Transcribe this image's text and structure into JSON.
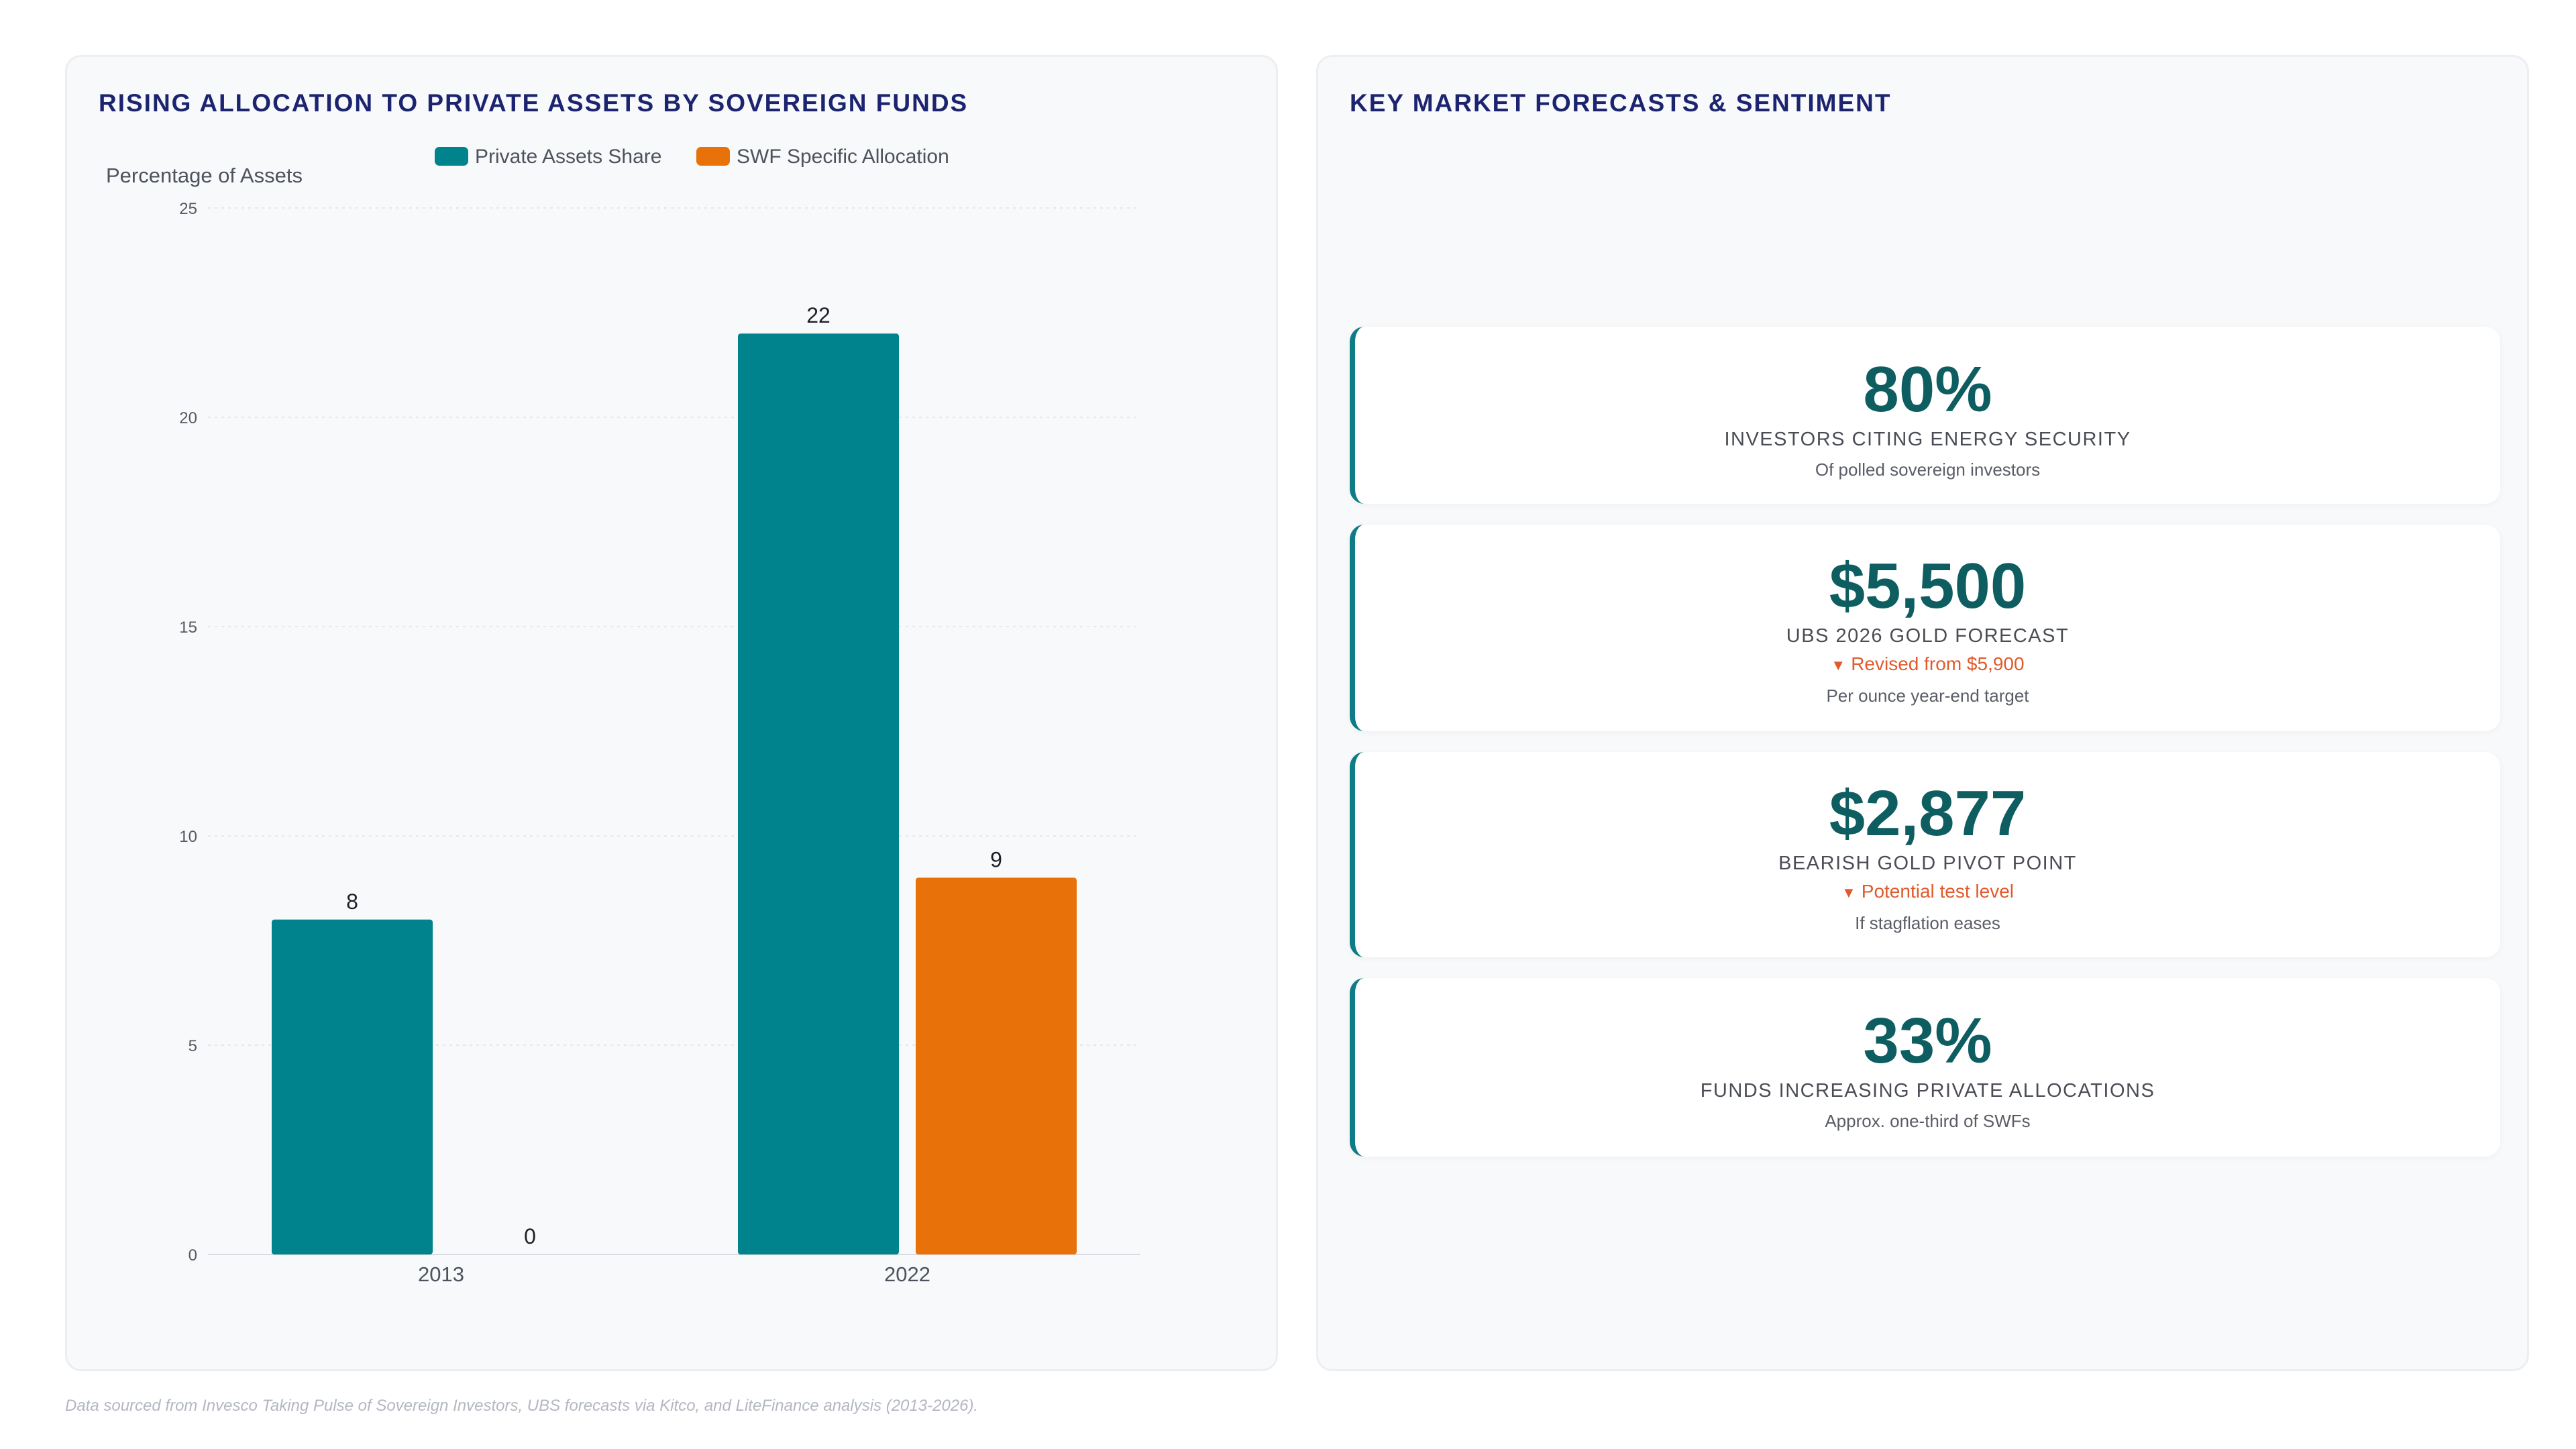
{
  "chart_panel": {
    "title": "RISING ALLOCATION TO PRIVATE ASSETS BY SOVEREIGN FUNDS"
  },
  "chart_data": {
    "type": "bar",
    "title": "RISING ALLOCATION TO PRIVATE ASSETS BY SOVEREIGN FUNDS",
    "ylabel": "Percentage of Assets",
    "xlabel": "",
    "categories": [
      "2013",
      "2022"
    ],
    "series": [
      {
        "name": "Private Assets Share",
        "values": [
          8,
          22
        ],
        "color": "#00838c"
      },
      {
        "name": "SWF Specific Allocation",
        "values": [
          0,
          9
        ],
        "color": "#e8710a"
      }
    ],
    "ylim": [
      0,
      25
    ],
    "yticks": [
      0,
      5,
      10,
      15,
      20,
      25
    ],
    "legend": "top-center",
    "grid": true,
    "data_labels": true
  },
  "kpi_panel": {
    "title": "KEY MARKET FORECASTS & SENTIMENT",
    "cards": [
      {
        "value": "80%",
        "label": "INVESTORS CITING ENERGY SECURITY",
        "change": "",
        "sub": "Of polled sovereign investors"
      },
      {
        "value": "$5,500",
        "label": "UBS 2026 GOLD FORECAST",
        "change": "Revised from $5,900",
        "sub": "Per ounce year-end target"
      },
      {
        "value": "$2,877",
        "label": "BEARISH GOLD PIVOT POINT",
        "change": "Potential test level",
        "sub": "If stagflation eases"
      },
      {
        "value": "33%",
        "label": "FUNDS INCREASING PRIVATE ALLOCATIONS",
        "change": "",
        "sub": "Approx. one-third of SWFs"
      }
    ],
    "change_icon": "triangle-down-icon",
    "accent_color": "#0e7c86",
    "negative_color": "#e15a2c"
  },
  "footnote": "Data sourced from Invesco Taking Pulse of Sovereign Investors, UBS forecasts via Kitco, and LiteFinance analysis (2013-2026)."
}
